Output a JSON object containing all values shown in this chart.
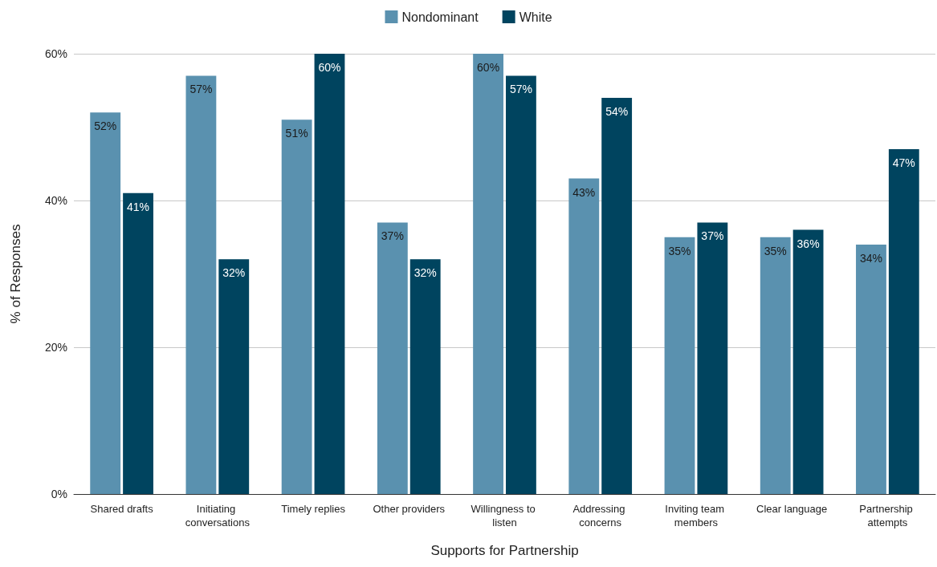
{
  "chart_data": {
    "type": "bar",
    "xlabel": "Supports for Partnership",
    "ylabel": "% of Responses",
    "categories": [
      "Shared drafts",
      "Initiating conversations",
      "Timely replies",
      "Other providers",
      "Willingness to listen",
      "Addressing concerns",
      "Inviting team members",
      "Clear language",
      "Partnership attempts"
    ],
    "series": [
      {
        "name": "Nondominant",
        "color": "#5a91af",
        "values": [
          52,
          57,
          51,
          37,
          60,
          43,
          35,
          35,
          34
        ],
        "value_labels": [
          "52%",
          "57%",
          "51%",
          "37%",
          "60%",
          "43%",
          "35%",
          "35%",
          "34%"
        ]
      },
      {
        "name": "White",
        "color": "#00445f",
        "values": [
          41,
          32,
          60,
          32,
          57,
          54,
          37,
          36,
          47
        ],
        "value_labels": [
          "41%",
          "32%",
          "60%",
          "32%",
          "57%",
          "54%",
          "37%",
          "36%",
          "47%"
        ]
      }
    ],
    "ylim": [
      0,
      60
    ],
    "yticks": [
      {
        "value": 0,
        "label": "0%"
      },
      {
        "value": 20,
        "label": "20%"
      },
      {
        "value": 40,
        "label": "40%"
      },
      {
        "value": 60,
        "label": "60%"
      }
    ],
    "grid": "y",
    "legend": "top"
  }
}
